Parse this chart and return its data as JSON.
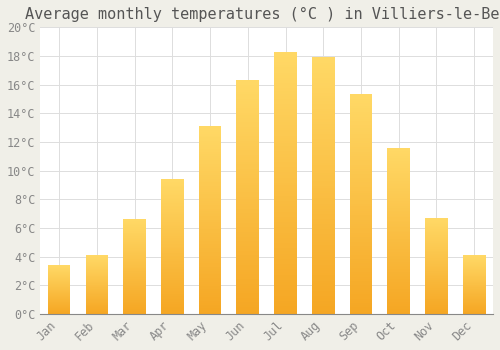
{
  "title": "Average monthly temperatures (°C ) in Villiers-le-Bel",
  "months": [
    "Jan",
    "Feb",
    "Mar",
    "Apr",
    "May",
    "Jun",
    "Jul",
    "Aug",
    "Sep",
    "Oct",
    "Nov",
    "Dec"
  ],
  "temperatures": [
    3.4,
    4.1,
    6.6,
    9.4,
    13.1,
    16.3,
    18.3,
    17.9,
    15.3,
    11.6,
    6.7,
    4.1
  ],
  "bar_color_bottom": "#F5A623",
  "bar_color_top": "#FFD966",
  "background_color": "#FFFFFF",
  "fig_background_color": "#F0EFE8",
  "grid_color": "#DDDDDD",
  "ylim": [
    0,
    20
  ],
  "yticks": [
    0,
    2,
    4,
    6,
    8,
    10,
    12,
    14,
    16,
    18,
    20
  ],
  "title_fontsize": 11,
  "tick_fontsize": 8.5,
  "font_family": "monospace",
  "bar_width": 0.6
}
